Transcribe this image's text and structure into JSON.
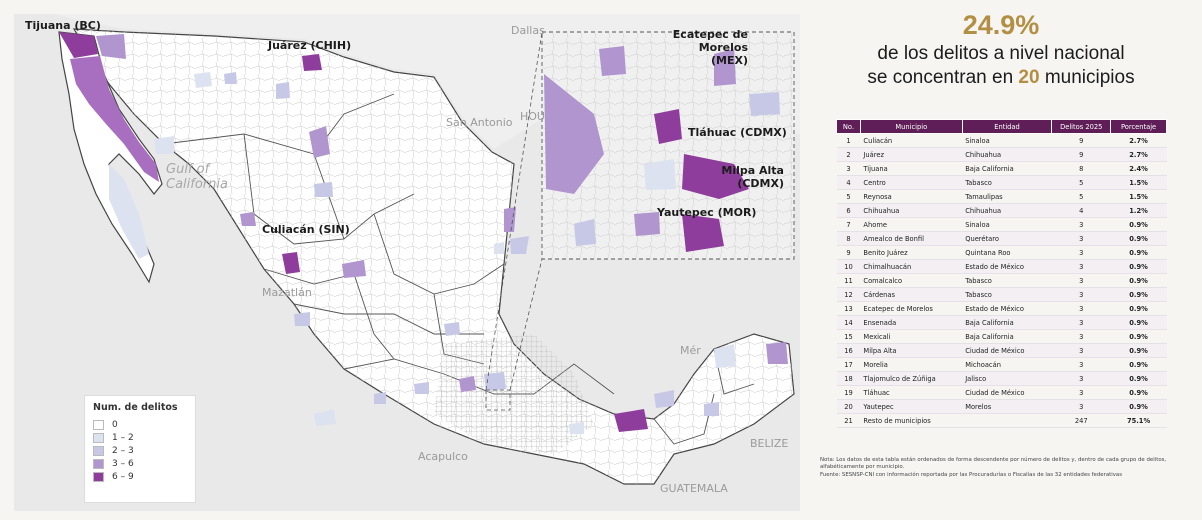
{
  "map": {
    "labels": {
      "tijuana": "Tijuana (BC)",
      "juarez": "Juárez (CHIH)",
      "culiacan": "Culiacán (SIN)",
      "ecatepec": "Ecatepec de Morelos (MEX)",
      "tlahuac": "Tláhuac (CDMX)",
      "milpa_alta": "Milpa Alta (CDMX)",
      "yautepec": "Yautepec (MOR)"
    },
    "geo": {
      "dallas": "Dallas",
      "san_antonio": "San Antonio",
      "hou": "HOU",
      "gulf_line1": "Gulf of",
      "gulf_line2": "California",
      "mazatlan": "Mazatlán",
      "acapulco": "Acapulco",
      "guatemala": "GUATEMALA",
      "belize": "BELIZE",
      "merida": "Mér"
    },
    "legend": {
      "title": "Num. de delitos",
      "items": [
        {
          "label": "0",
          "color": "#ffffff"
        },
        {
          "label": "1 – 2",
          "color": "#dde2f0"
        },
        {
          "label": "2 – 3",
          "color": "#c7c8e6"
        },
        {
          "label": "3 – 6",
          "color": "#b095cf"
        },
        {
          "label": "6 – 9",
          "color": "#8f3d9c"
        }
      ]
    }
  },
  "headline": {
    "percent": "24.9%",
    "line1": "de los delitos a nivel nacional",
    "line2_pre": "se concentran en ",
    "line2_num": "20",
    "line2_post": " municipios"
  },
  "table": {
    "headers": [
      "No.",
      "Municipio",
      "Entidad",
      "Delitos 2025",
      "Porcentaje"
    ],
    "rows": [
      [
        "1",
        "Culiacán",
        "Sinaloa",
        "9",
        "2.7%"
      ],
      [
        "2",
        "Juárez",
        "Chihuahua",
        "9",
        "2.7%"
      ],
      [
        "3",
        "Tijuana",
        "Baja California",
        "8",
        "2.4%"
      ],
      [
        "4",
        "Centro",
        "Tabasco",
        "5",
        "1.5%"
      ],
      [
        "5",
        "Reynosa",
        "Tamaulipas",
        "5",
        "1.5%"
      ],
      [
        "6",
        "Chihuahua",
        "Chihuahua",
        "4",
        "1.2%"
      ],
      [
        "7",
        "Ahome",
        "Sinaloa",
        "3",
        "0.9%"
      ],
      [
        "8",
        "Amealco de Bonfil",
        "Querétaro",
        "3",
        "0.9%"
      ],
      [
        "9",
        "Benito Juárez",
        "Quintana Roo",
        "3",
        "0.9%"
      ],
      [
        "10",
        "Chimalhuacán",
        "Estado de México",
        "3",
        "0.9%"
      ],
      [
        "11",
        "Comalcalco",
        "Tabasco",
        "3",
        "0.9%"
      ],
      [
        "12",
        "Cárdenas",
        "Tabasco",
        "3",
        "0.9%"
      ],
      [
        "13",
        "Ecatepec de Morelos",
        "Estado de México",
        "3",
        "0.9%"
      ],
      [
        "14",
        "Ensenada",
        "Baja California",
        "3",
        "0.9%"
      ],
      [
        "15",
        "Mexicali",
        "Baja California",
        "3",
        "0.9%"
      ],
      [
        "16",
        "Milpa Alta",
        "Ciudad de México",
        "3",
        "0.9%"
      ],
      [
        "17",
        "Morelia",
        "Michoacán",
        "3",
        "0.9%"
      ],
      [
        "18",
        "Tlajomulco de Zúñiga",
        "Jalisco",
        "3",
        "0.9%"
      ],
      [
        "19",
        "Tláhuac",
        "Ciudad de México",
        "3",
        "0.9%"
      ],
      [
        "20",
        "Yautepec",
        "Morelos",
        "3",
        "0.9%"
      ],
      [
        "21",
        "Resto de municipios",
        "",
        "247",
        "75.1%"
      ]
    ]
  },
  "footnote": {
    "line1": "Nota: Los datos de esta tabla están ordenados de forma descendente por número de delitos y, dentro de cada grupo de delitos, alfabéticamente por municipio.",
    "line2": "Fuente: SESNSP-CNI con información reportada por las Procuradurías o Fiscalías de las 32 entidades federativas"
  }
}
